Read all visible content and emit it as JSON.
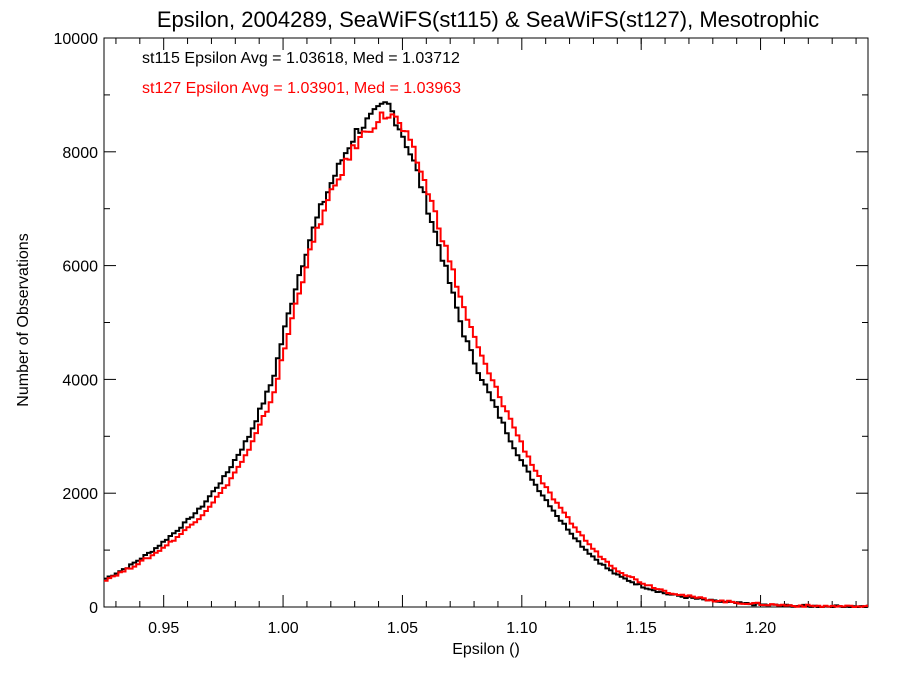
{
  "chart_data": {
    "type": "line",
    "step": true,
    "title": "Epsilon, 2004289, SeaWiFS(st115) & SeaWiFS(st127), Mesotrophic",
    "xlabel": "Epsilon ()",
    "ylabel": "Number of Observations",
    "xlim": [
      0.925,
      1.245
    ],
    "ylim": [
      0,
      10000
    ],
    "x_ticks": [
      0.95,
      1.0,
      1.05,
      1.1,
      1.15,
      1.2
    ],
    "x_tick_labels": [
      "0.95",
      "1.00",
      "1.05",
      "1.10",
      "1.15",
      "1.20"
    ],
    "y_ticks": [
      0,
      2000,
      4000,
      6000,
      8000,
      10000
    ],
    "y_tick_labels": [
      "0",
      "2000",
      "4000",
      "6000",
      "8000",
      "10000"
    ],
    "grid": false,
    "annotations": [
      {
        "text": "st115 Epsilon Avg = 1.03618, Med = 1.03712",
        "color": "#000000"
      },
      {
        "text": "st127 Epsilon Avg = 1.03901, Med = 1.03963",
        "color": "#ff0000"
      }
    ],
    "series": [
      {
        "color": "#000000",
        "x": [
          0.925,
          0.935,
          0.945,
          0.955,
          0.965,
          0.975,
          0.985,
          0.995,
          1.0,
          1.005,
          1.01,
          1.015,
          1.02,
          1.025,
          1.03,
          1.035,
          1.04,
          1.043,
          1.045,
          1.05,
          1.055,
          1.06,
          1.065,
          1.07,
          1.075,
          1.08,
          1.085,
          1.09,
          1.095,
          1.1,
          1.105,
          1.11,
          1.115,
          1.12,
          1.125,
          1.13,
          1.135,
          1.14,
          1.15,
          1.16,
          1.17,
          1.18,
          1.19,
          1.2,
          1.21,
          1.22,
          1.23,
          1.245
        ],
        "y": [
          500,
          720,
          1000,
          1350,
          1750,
          2300,
          3000,
          4000,
          4900,
          5700,
          6400,
          7000,
          7500,
          7950,
          8350,
          8550,
          8750,
          8850,
          8700,
          8250,
          7700,
          7000,
          6300,
          5550,
          4800,
          4250,
          3800,
          3350,
          2900,
          2500,
          2150,
          1850,
          1550,
          1300,
          1050,
          850,
          680,
          540,
          360,
          230,
          160,
          100,
          65,
          40,
          25,
          15,
          10,
          5
        ]
      },
      {
        "color": "#ff0000",
        "x": [
          0.925,
          0.935,
          0.945,
          0.955,
          0.965,
          0.975,
          0.985,
          0.995,
          1.0,
          1.005,
          1.01,
          1.015,
          1.02,
          1.025,
          1.03,
          1.035,
          1.04,
          1.043,
          1.045,
          1.05,
          1.055,
          1.06,
          1.065,
          1.07,
          1.075,
          1.08,
          1.085,
          1.09,
          1.095,
          1.1,
          1.105,
          1.11,
          1.115,
          1.12,
          1.125,
          1.13,
          1.135,
          1.14,
          1.15,
          1.16,
          1.17,
          1.18,
          1.19,
          1.2,
          1.21,
          1.22,
          1.23,
          1.245
        ],
        "y": [
          480,
          680,
          920,
          1230,
          1600,
          2100,
          2750,
          3700,
          4550,
          5400,
          6150,
          6800,
          7300,
          7750,
          8150,
          8400,
          8600,
          8650,
          8650,
          8350,
          7900,
          7300,
          6650,
          5950,
          5250,
          4650,
          4150,
          3700,
          3250,
          2800,
          2400,
          2050,
          1750,
          1480,
          1220,
          980,
          790,
          630,
          420,
          270,
          180,
          115,
          75,
          48,
          30,
          18,
          12,
          6
        ]
      }
    ]
  }
}
